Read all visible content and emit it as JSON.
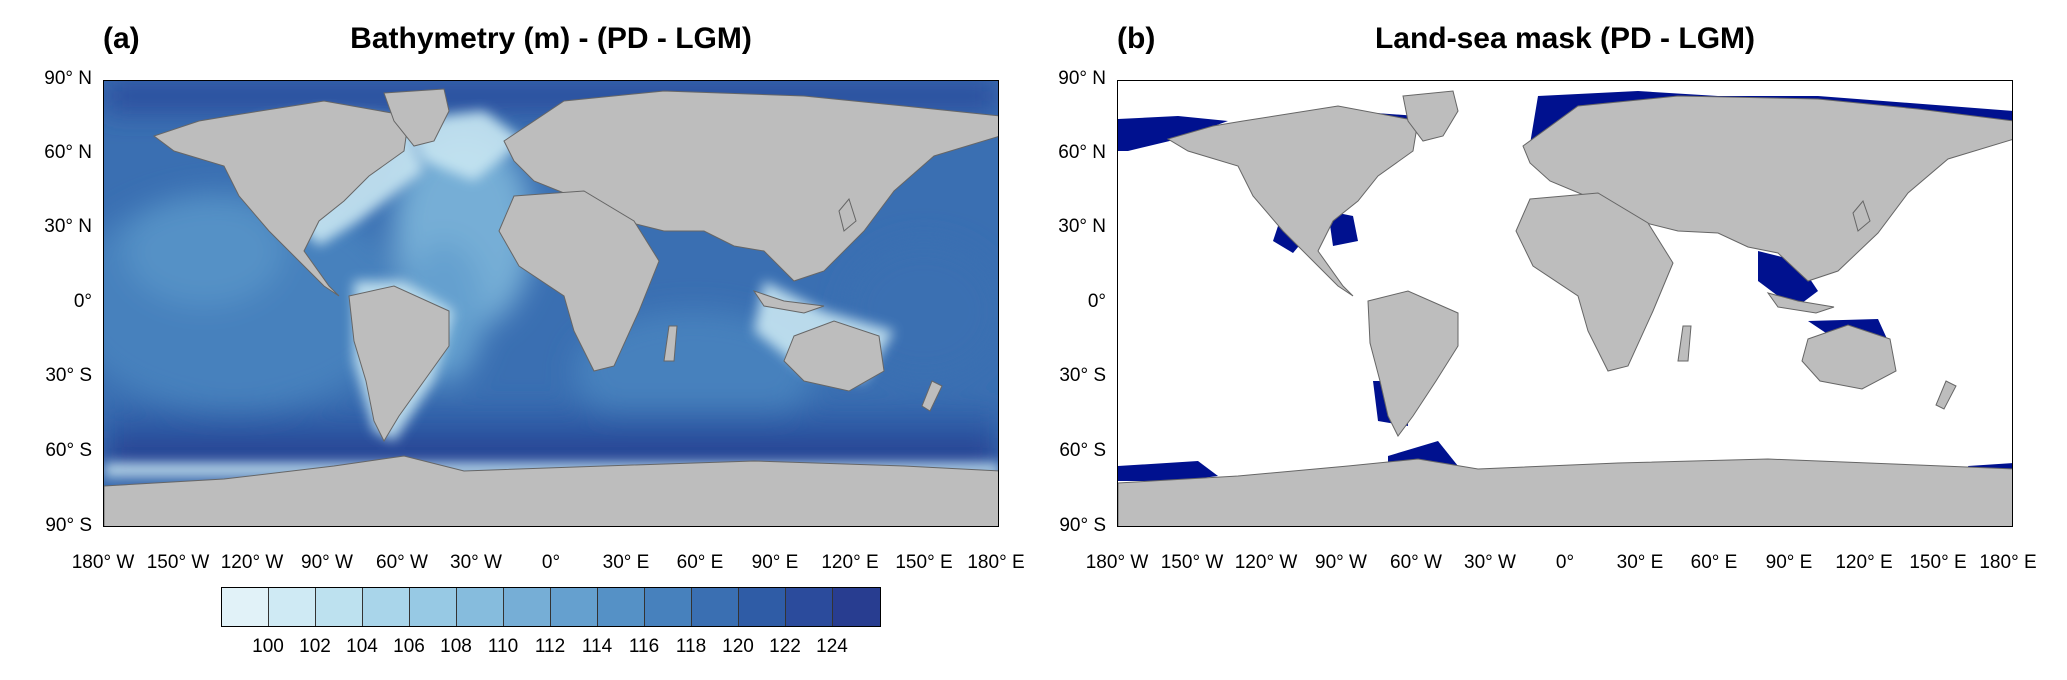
{
  "panels": [
    {
      "letter": "(a)",
      "title": "Bathymetry (m) - (PD - LGM)"
    },
    {
      "letter": "(b)",
      "title": "Land-sea mask (PD - LGM)"
    }
  ],
  "lat_labels": [
    "90° N",
    "60° N",
    "30° N",
    "0°",
    "30° S",
    "60° S",
    "90° S"
  ],
  "lon_labels": [
    "180° W",
    "150° W",
    "120° W",
    "90° W",
    "60° W",
    "30° W",
    "0°",
    "30° E",
    "60° E",
    "90° E",
    "120° E",
    "150° E",
    "180° E"
  ],
  "colorbar": {
    "tick_labels": [
      "100",
      "102",
      "104",
      "106",
      "108",
      "110",
      "112",
      "114",
      "116",
      "118",
      "120",
      "122",
      "124"
    ],
    "colors": [
      "#e1f2f8",
      "#cfeaf4",
      "#bde1ef",
      "#a9d5ea",
      "#97c9e4",
      "#86bcdd",
      "#76aed6",
      "#65a0cf",
      "#5591c6",
      "#4781bd",
      "#3a6fb2",
      "#2f5ca6",
      "#2b4b9c",
      "#283d90"
    ]
  },
  "colors": {
    "land": "#bdbdbd",
    "mask_ocean": "#ffffff",
    "mask_change": "#00118f",
    "coast": "#666666"
  }
}
